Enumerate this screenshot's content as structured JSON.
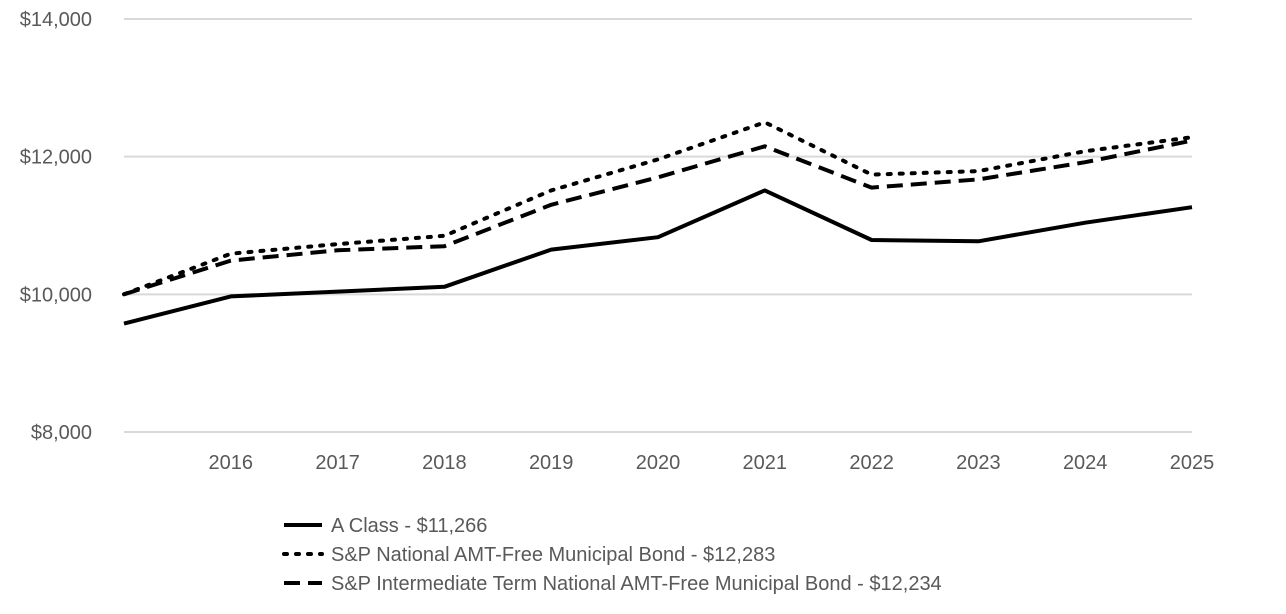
{
  "chart_data": {
    "type": "line",
    "title": "",
    "xlabel": "",
    "ylabel": "",
    "x": [
      "2015",
      "2016",
      "2017",
      "2018",
      "2019",
      "2020",
      "2021",
      "2022",
      "2023",
      "2024",
      "2025"
    ],
    "x_tick_labels": [
      "2016",
      "2017",
      "2018",
      "2019",
      "2020",
      "2021",
      "2022",
      "2023",
      "2024",
      "2025"
    ],
    "ylim": [
      8000,
      14000
    ],
    "y_ticks": [
      8000,
      10000,
      12000,
      14000
    ],
    "y_tick_labels": [
      "$8,000",
      "$10,000",
      "$12,000",
      "$14,000"
    ],
    "grid": true,
    "legend_position": "bottom",
    "series": [
      {
        "name": "A Class - $11,266",
        "style": "solid",
        "color": "#000000",
        "values": [
          9575,
          9970,
          10040,
          10110,
          10650,
          10830,
          11510,
          10790,
          10770,
          11040,
          11266
        ]
      },
      {
        "name": "S&P National AMT-Free Municipal Bond - $12,283",
        "style": "dotted",
        "color": "#000000",
        "values": [
          10000,
          10590,
          10730,
          10850,
          11510,
          11960,
          12500,
          11740,
          11790,
          12080,
          12283
        ]
      },
      {
        "name": "S&P Intermediate Term National AMT-Free Municipal Bond - $12,234",
        "style": "dashed",
        "color": "#000000",
        "values": [
          10000,
          10490,
          10640,
          10700,
          11300,
          11700,
          12150,
          11550,
          11670,
          11920,
          12234
        ]
      }
    ]
  }
}
